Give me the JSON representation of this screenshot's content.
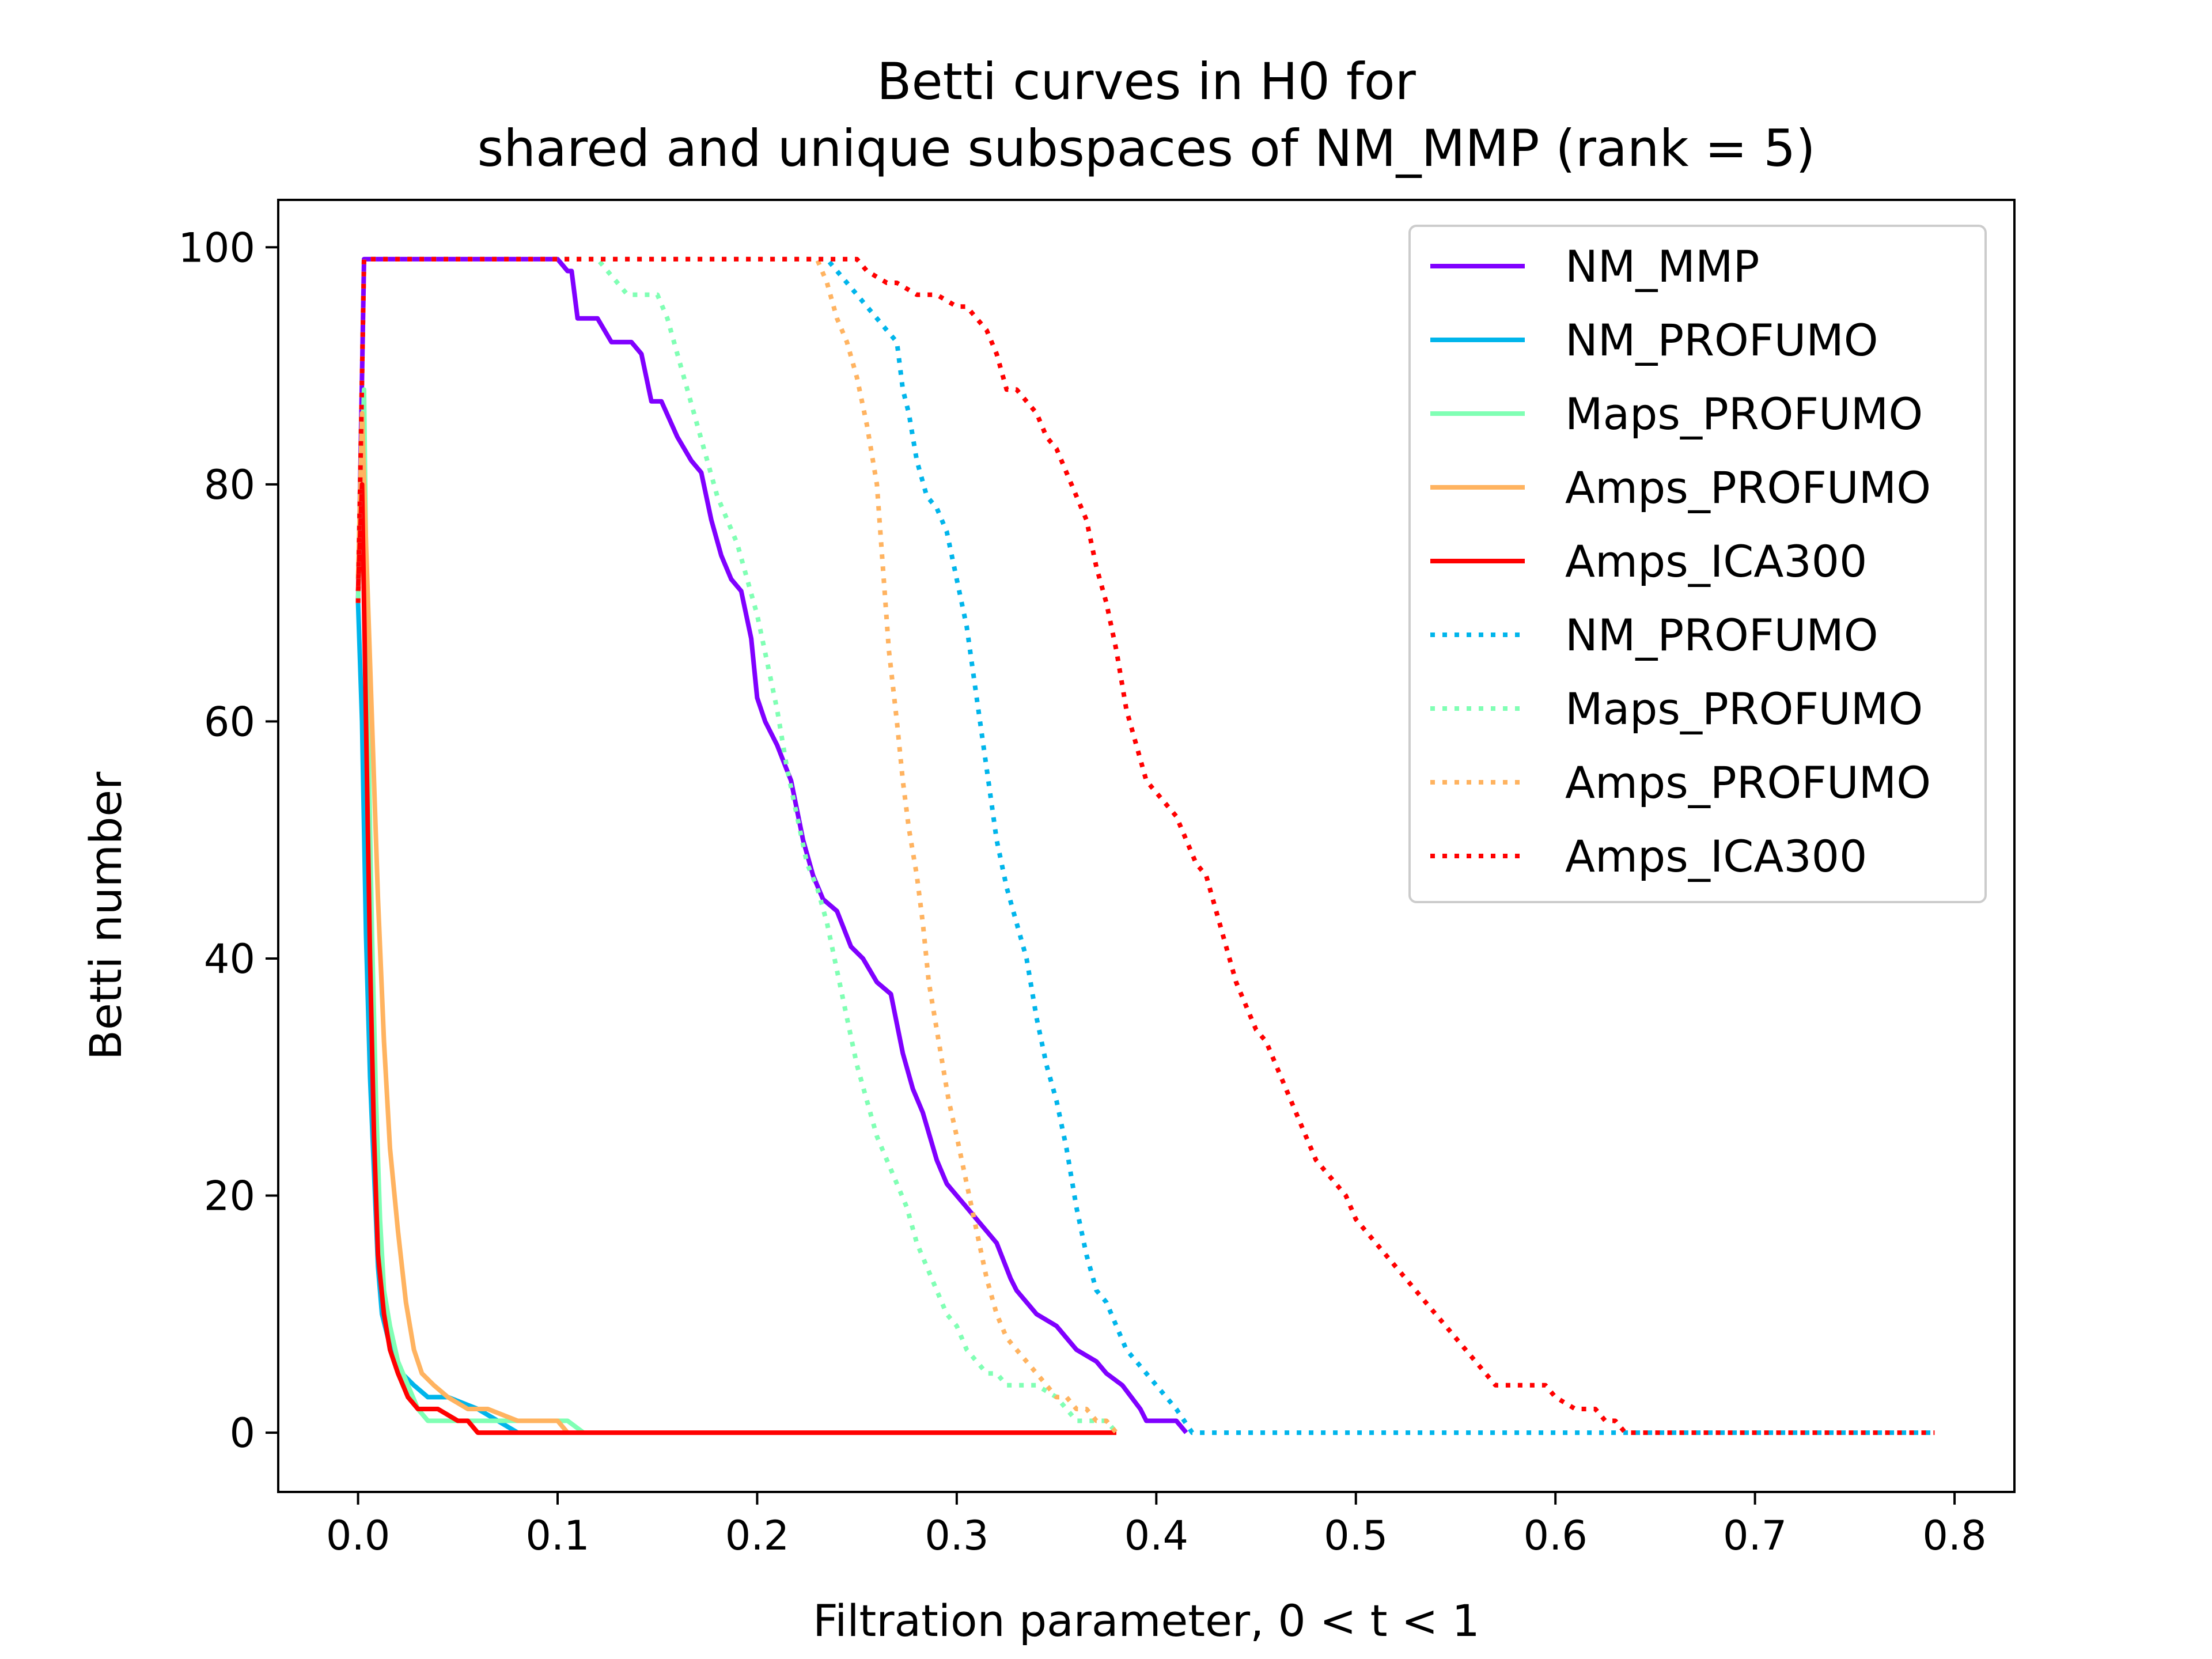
{
  "chart_data": {
    "type": "line",
    "title": "Betti curves in H0 for",
    "subtitle": "shared and unique subspaces of NM_MMP (rank = 5)",
    "xlabel": "Filtration parameter, 0 < t < 1",
    "ylabel": "Betti number",
    "xlim": [
      -0.04,
      0.83
    ],
    "ylim": [
      -5,
      104
    ],
    "xticks": [
      0.0,
      0.1,
      0.2,
      0.3,
      0.4,
      0.5,
      0.6,
      0.7,
      0.8
    ],
    "xtick_labels": [
      "0.0",
      "0.1",
      "0.2",
      "0.3",
      "0.4",
      "0.5",
      "0.6",
      "0.7",
      "0.8"
    ],
    "yticks": [
      0,
      20,
      40,
      60,
      80,
      100
    ],
    "ytick_labels": [
      "0",
      "20",
      "40",
      "60",
      "80",
      "100"
    ],
    "grid": false,
    "legend_position": "top-right",
    "series": [
      {
        "name": "NM_MMP",
        "color": "#8000ff",
        "style": "solid",
        "x": [
          0.0,
          0.003,
          0.1,
          0.105,
          0.107,
          0.11,
          0.12,
          0.127,
          0.137,
          0.142,
          0.147,
          0.152,
          0.16,
          0.167,
          0.172,
          0.177,
          0.182,
          0.187,
          0.192,
          0.197,
          0.2,
          0.204,
          0.21,
          0.217,
          0.223,
          0.228,
          0.233,
          0.24,
          0.247,
          0.253,
          0.26,
          0.267,
          0.273,
          0.278,
          0.283,
          0.29,
          0.295,
          0.3,
          0.305,
          0.31,
          0.315,
          0.32,
          0.327,
          0.33,
          0.34,
          0.35,
          0.355,
          0.36,
          0.37,
          0.375,
          0.383,
          0.392,
          0.395,
          0.41,
          0.415
        ],
        "y": [
          70,
          99,
          99,
          98,
          98,
          94,
          94,
          92,
          92,
          91,
          87,
          87,
          84,
          82,
          81,
          77,
          74,
          72,
          71,
          67,
          62,
          60,
          58,
          55,
          50,
          47,
          45,
          44,
          41,
          40,
          38,
          37,
          32,
          29,
          27,
          23,
          21,
          20,
          19,
          18,
          17,
          16,
          13,
          12,
          10,
          9,
          8,
          7,
          6,
          5,
          4,
          2,
          1,
          1,
          0
        ]
      },
      {
        "name": "NM_PROFUMO",
        "color": "#00b5eb",
        "style": "solid",
        "x": [
          0.0,
          0.002,
          0.004,
          0.006,
          0.008,
          0.01,
          0.012,
          0.015,
          0.018,
          0.022,
          0.028,
          0.035,
          0.045,
          0.06,
          0.07,
          0.08
        ],
        "y": [
          70,
          60,
          42,
          30,
          22,
          14,
          10,
          8,
          6,
          5,
          4,
          3,
          3,
          2,
          1,
          0
        ]
      },
      {
        "name": "Maps_PROFUMO",
        "color": "#80ffb4",
        "style": "solid",
        "x": [
          0.0,
          0.003,
          0.005,
          0.007,
          0.009,
          0.011,
          0.013,
          0.016,
          0.02,
          0.025,
          0.03,
          0.035,
          0.05,
          0.1,
          0.105,
          0.113
        ],
        "y": [
          70,
          88,
          60,
          42,
          28,
          18,
          12,
          9,
          6,
          4,
          2,
          1,
          1,
          1,
          1,
          0
        ]
      },
      {
        "name": "Amps_PROFUMO",
        "color": "#ffb360",
        "style": "solid",
        "x": [
          0.0,
          0.002,
          0.004,
          0.007,
          0.01,
          0.013,
          0.016,
          0.02,
          0.024,
          0.028,
          0.032,
          0.038,
          0.045,
          0.055,
          0.065,
          0.08,
          0.1,
          0.105
        ],
        "y": [
          72,
          86,
          75,
          60,
          45,
          33,
          24,
          17,
          11,
          7,
          5,
          4,
          3,
          2,
          2,
          1,
          1,
          0
        ]
      },
      {
        "name": "Amps_ICA300",
        "color": "#ff0000",
        "style": "solid",
        "x": [
          0.0,
          0.002,
          0.004,
          0.006,
          0.008,
          0.01,
          0.013,
          0.016,
          0.02,
          0.025,
          0.03,
          0.04,
          0.05,
          0.055,
          0.06,
          0.38
        ],
        "y": [
          71,
          80,
          60,
          40,
          25,
          15,
          10,
          7,
          5,
          3,
          2,
          2,
          1,
          1,
          0,
          0
        ]
      },
      {
        "name": "NM_PROFUMO",
        "color": "#00b5eb",
        "style": "dotted",
        "x": [
          0.0,
          0.003,
          0.235,
          0.24,
          0.245,
          0.25,
          0.255,
          0.26,
          0.265,
          0.27,
          0.273,
          0.276,
          0.28,
          0.285,
          0.29,
          0.295,
          0.3,
          0.305,
          0.31,
          0.315,
          0.32,
          0.325,
          0.33,
          0.335,
          0.34,
          0.345,
          0.35,
          0.355,
          0.36,
          0.365,
          0.37,
          0.375,
          0.38,
          0.385,
          0.39,
          0.395,
          0.4,
          0.405,
          0.41,
          0.418,
          0.79
        ],
        "y": [
          70,
          99,
          99,
          98,
          97,
          96,
          95,
          94,
          93,
          92,
          88,
          86,
          82,
          79,
          78,
          76,
          72,
          68,
          62,
          56,
          50,
          46,
          43,
          40,
          35,
          31,
          28,
          24,
          19,
          15,
          12,
          11,
          9,
          7,
          6,
          5,
          4,
          3,
          2,
          0,
          0
        ]
      },
      {
        "name": "Maps_PROFUMO",
        "color": "#80ffb4",
        "style": "dotted",
        "x": [
          0.0,
          0.003,
          0.12,
          0.125,
          0.13,
          0.135,
          0.14,
          0.15,
          0.155,
          0.16,
          0.165,
          0.17,
          0.175,
          0.18,
          0.185,
          0.19,
          0.195,
          0.2,
          0.205,
          0.21,
          0.215,
          0.22,
          0.225,
          0.23,
          0.235,
          0.24,
          0.245,
          0.25,
          0.255,
          0.26,
          0.265,
          0.27,
          0.275,
          0.28,
          0.285,
          0.29,
          0.295,
          0.3,
          0.305,
          0.31,
          0.315,
          0.32,
          0.325,
          0.33,
          0.34,
          0.35,
          0.355,
          0.36,
          0.365,
          0.37,
          0.375,
          0.38
        ],
        "y": [
          70,
          99,
          99,
          98,
          97,
          96,
          96,
          96,
          94,
          91,
          88,
          85,
          82,
          79,
          77,
          75,
          72,
          69,
          65,
          61,
          56,
          52,
          48,
          46,
          43,
          39,
          35,
          31,
          28,
          25,
          23,
          21,
          19,
          16,
          14,
          12,
          10,
          9,
          7,
          6,
          5,
          5,
          4,
          4,
          4,
          3,
          2,
          1,
          1,
          1,
          1,
          0
        ]
      },
      {
        "name": "Amps_PROFUMO",
        "color": "#ffb360",
        "style": "dotted",
        "x": [
          0.0,
          0.003,
          0.23,
          0.235,
          0.24,
          0.245,
          0.25,
          0.255,
          0.26,
          0.263,
          0.266,
          0.27,
          0.273,
          0.276,
          0.28,
          0.283,
          0.286,
          0.29,
          0.293,
          0.296,
          0.3,
          0.305,
          0.31,
          0.315,
          0.32,
          0.325,
          0.33,
          0.335,
          0.34,
          0.345,
          0.35,
          0.355,
          0.36,
          0.365,
          0.37,
          0.375,
          0.38
        ],
        "y": [
          70,
          99,
          99,
          97,
          94,
          92,
          89,
          85,
          80,
          73,
          66,
          60,
          55,
          51,
          47,
          43,
          38,
          34,
          31,
          28,
          25,
          21,
          17,
          13,
          10,
          8,
          7,
          6,
          5,
          4,
          3,
          3,
          2,
          2,
          1,
          1,
          0
        ]
      },
      {
        "name": "Amps_ICA300",
        "color": "#ff0000",
        "style": "dotted",
        "x": [
          0.0,
          0.003,
          0.25,
          0.255,
          0.265,
          0.27,
          0.28,
          0.29,
          0.3,
          0.305,
          0.31,
          0.315,
          0.32,
          0.325,
          0.33,
          0.335,
          0.34,
          0.345,
          0.35,
          0.355,
          0.36,
          0.365,
          0.37,
          0.375,
          0.38,
          0.385,
          0.39,
          0.395,
          0.4,
          0.405,
          0.41,
          0.415,
          0.42,
          0.425,
          0.43,
          0.435,
          0.44,
          0.445,
          0.45,
          0.455,
          0.46,
          0.465,
          0.47,
          0.475,
          0.48,
          0.485,
          0.49,
          0.495,
          0.5,
          0.505,
          0.51,
          0.515,
          0.52,
          0.525,
          0.53,
          0.535,
          0.54,
          0.545,
          0.55,
          0.555,
          0.56,
          0.565,
          0.57,
          0.575,
          0.58,
          0.585,
          0.59,
          0.595,
          0.6,
          0.61,
          0.62,
          0.625,
          0.63,
          0.635,
          0.64,
          0.645,
          0.65,
          0.655,
          0.66,
          0.665,
          0.67,
          0.675,
          0.68,
          0.685,
          0.69,
          0.695,
          0.7,
          0.705,
          0.71,
          0.72,
          0.73,
          0.74,
          0.75,
          0.755,
          0.76,
          0.765,
          0.77,
          0.775,
          0.78,
          0.785,
          0.79
        ],
        "y": [
          70,
          99,
          99,
          98,
          97,
          97,
          96,
          96,
          95,
          95,
          94,
          93,
          91,
          88,
          88,
          87,
          86,
          84,
          83,
          81,
          79,
          77,
          73,
          70,
          66,
          61,
          58,
          55,
          54,
          53,
          52,
          50,
          48,
          47,
          44,
          41,
          38,
          36,
          34,
          33,
          31,
          29,
          27,
          25,
          23,
          22,
          21,
          20,
          18,
          17,
          16,
          15,
          14,
          13,
          12,
          11,
          10,
          9,
          8,
          7,
          6,
          5,
          4,
          4,
          4,
          4,
          4,
          4,
          3,
          2,
          2,
          1,
          1,
          0,
          0,
          0,
          0,
          0,
          0,
          0,
          0,
          0,
          0,
          0,
          0,
          0,
          0,
          0,
          0,
          0,
          0,
          0,
          0,
          0,
          0,
          0,
          0,
          0,
          0,
          0,
          0
        ]
      }
    ]
  }
}
